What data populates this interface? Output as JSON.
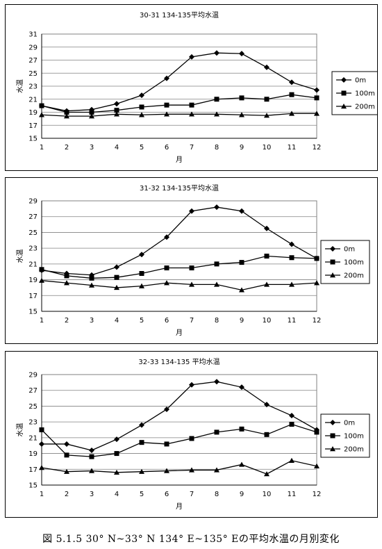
{
  "figure_caption": "図 5.1.5 30° N~33° N 134° E~135° Eの平均水温の月別変化",
  "chart_data": [
    {
      "type": "line",
      "title": "30-31 134-135平均水温",
      "xlabel": "月",
      "ylabel": "水温",
      "categories": [
        "1",
        "2",
        "3",
        "4",
        "5",
        "6",
        "7",
        "8",
        "9",
        "10",
        "11",
        "12"
      ],
      "ylim": [
        15,
        31
      ],
      "yticks": [
        15,
        17,
        19,
        21,
        23,
        25,
        27,
        29,
        31
      ],
      "grid": true,
      "legend": "right",
      "series": [
        {
          "name": "0m",
          "marker": "diamond",
          "values": [
            20.0,
            19.2,
            19.4,
            20.3,
            21.6,
            24.2,
            27.5,
            28.1,
            28.0,
            25.9,
            23.6,
            22.4
          ]
        },
        {
          "name": "100m",
          "marker": "square",
          "values": [
            20.0,
            19.0,
            19.0,
            19.3,
            19.8,
            20.1,
            20.1,
            21.0,
            21.2,
            21.0,
            21.7,
            21.2
          ]
        },
        {
          "name": "200m",
          "marker": "triangle",
          "values": [
            18.6,
            18.4,
            18.4,
            18.7,
            18.6,
            18.7,
            18.7,
            18.7,
            18.6,
            18.5,
            18.8,
            18.8
          ]
        }
      ]
    },
    {
      "type": "line",
      "title": "31-32 134-135平均水温",
      "xlabel": "月",
      "ylabel": "水温",
      "categories": [
        "1",
        "2",
        "3",
        "4",
        "5",
        "6",
        "7",
        "8",
        "9",
        "10",
        "11",
        "12"
      ],
      "ylim": [
        15,
        29
      ],
      "yticks": [
        15,
        17,
        19,
        21,
        23,
        25,
        27,
        29
      ],
      "grid": true,
      "legend": "right",
      "series": [
        {
          "name": "0m",
          "marker": "diamond",
          "values": [
            20.2,
            19.8,
            19.6,
            20.6,
            22.2,
            24.4,
            27.7,
            28.2,
            27.7,
            25.5,
            23.5,
            21.7
          ]
        },
        {
          "name": "100m",
          "marker": "square",
          "values": [
            20.3,
            19.5,
            19.2,
            19.3,
            19.8,
            20.5,
            20.5,
            21.0,
            21.2,
            22.0,
            21.8,
            21.7
          ]
        },
        {
          "name": "200m",
          "marker": "triangle",
          "values": [
            18.9,
            18.6,
            18.3,
            18.0,
            18.2,
            18.6,
            18.4,
            18.4,
            17.7,
            18.4,
            18.4,
            18.6
          ]
        }
      ]
    },
    {
      "type": "line",
      "title": "32-33 134-135 平均水温",
      "xlabel": "月",
      "ylabel": "水温",
      "categories": [
        "1",
        "2",
        "3",
        "4",
        "5",
        "6",
        "7",
        "8",
        "9",
        "10",
        "11",
        "12"
      ],
      "ylim": [
        15,
        29
      ],
      "yticks": [
        15,
        17,
        19,
        21,
        23,
        25,
        27,
        29
      ],
      "grid": true,
      "legend": "right",
      "series": [
        {
          "name": "0m",
          "marker": "diamond",
          "values": [
            20.2,
            20.2,
            19.4,
            20.8,
            22.6,
            24.6,
            27.7,
            28.1,
            27.4,
            25.2,
            23.8,
            22.0
          ]
        },
        {
          "name": "100m",
          "marker": "square",
          "values": [
            22.0,
            18.8,
            18.6,
            19.0,
            20.4,
            20.2,
            20.9,
            21.7,
            22.1,
            21.4,
            22.7,
            21.7
          ]
        },
        {
          "name": "200m",
          "marker": "triangle",
          "values": [
            17.2,
            16.7,
            16.8,
            16.6,
            16.7,
            16.8,
            16.9,
            16.9,
            17.6,
            16.4,
            18.1,
            17.4
          ]
        }
      ]
    }
  ]
}
